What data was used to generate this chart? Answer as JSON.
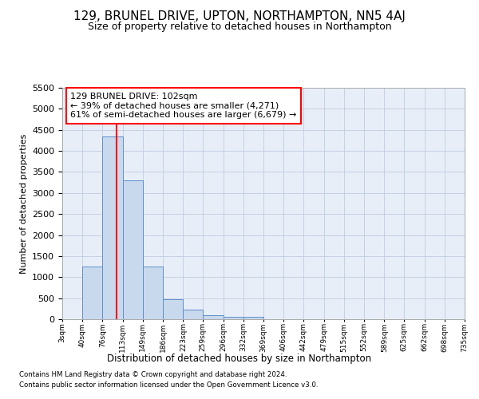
{
  "title": "129, BRUNEL DRIVE, UPTON, NORTHAMPTON, NN5 4AJ",
  "subtitle": "Size of property relative to detached houses in Northampton",
  "xlabel": "Distribution of detached houses by size in Northampton",
  "ylabel": "Number of detached properties",
  "bin_edges": [
    3,
    40,
    76,
    113,
    149,
    186,
    223,
    259,
    296,
    332,
    369,
    406,
    442,
    479,
    515,
    552,
    589,
    625,
    662,
    698,
    735
  ],
  "bar_heights": [
    0,
    1260,
    4350,
    3300,
    1260,
    480,
    220,
    100,
    60,
    60,
    0,
    0,
    0,
    0,
    0,
    0,
    0,
    0,
    0,
    0
  ],
  "bar_color": "#c9d9ed",
  "bar_edge_color": "#5b8fc9",
  "red_line_x": 102,
  "ylim": [
    0,
    5500
  ],
  "yticks": [
    0,
    500,
    1000,
    1500,
    2000,
    2500,
    3000,
    3500,
    4000,
    4500,
    5000,
    5500
  ],
  "annotation_line1": "129 BRUNEL DRIVE: 102sqm",
  "annotation_line2": "← 39% of detached houses are smaller (4,271)",
  "annotation_line3": "61% of semi-detached houses are larger (6,679) →",
  "footer1": "Contains HM Land Registry data © Crown copyright and database right 2024.",
  "footer2": "Contains public sector information licensed under the Open Government Licence v3.0.",
  "background_color": "#ffffff",
  "plot_bg_color": "#e8eef8",
  "grid_color": "#c0cce0"
}
